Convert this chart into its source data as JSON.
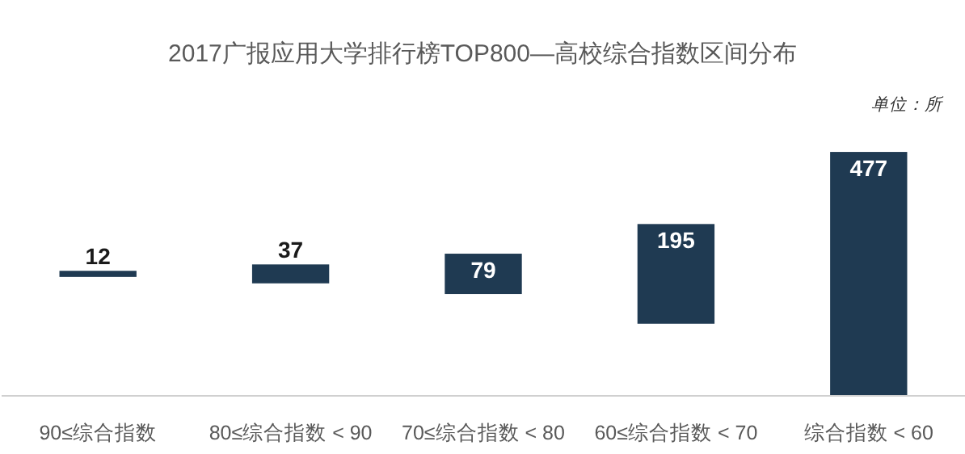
{
  "chart_data": {
    "type": "other",
    "title": "2017广报应用大学排行榜TOP800—高校综合指数区间分布",
    "annotations": [
      "单位：所"
    ],
    "categories": [
      "90≤综合指数",
      "80≤综合指数 < 90",
      "70≤综合指数 < 80",
      "60≤综合指数 < 70",
      "综合指数 < 60"
    ],
    "values": [
      12,
      37,
      79,
      195,
      477
    ],
    "data_labels": true,
    "color": "#1f3a52"
  }
}
